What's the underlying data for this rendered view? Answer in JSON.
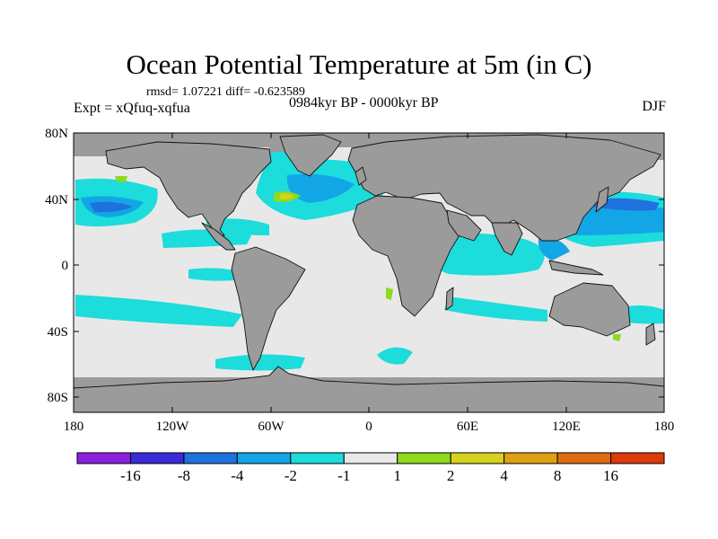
{
  "title": "Ocean Potential Temperature at 5m (in C)",
  "stats": "rmsd= 1.07221 diff= -0.623589",
  "experiment": "Expt = xQfuq-xqfua",
  "period": "0984kyr BP - 0000kyr BP",
  "season": "DJF",
  "lat_labels": [
    "80N",
    "40N",
    "0",
    "40S",
    "80S"
  ],
  "lon_labels": [
    "180",
    "120W",
    "60W",
    "0",
    "60E",
    "120E",
    "180"
  ],
  "colorbar": {
    "labels": [
      "-16",
      "-8",
      "-4",
      "-2",
      "-1",
      "1",
      "2",
      "4",
      "8",
      "16"
    ],
    "colors": [
      "#8a1fe0",
      "#3a2ad8",
      "#1f72de",
      "#13a6e6",
      "#1cdcdc",
      "#e8e8e8",
      "#8fd91e",
      "#d6d21f",
      "#e0a015",
      "#e06c10",
      "#dc3a0c"
    ]
  },
  "colors": {
    "land": "#9b9b9b",
    "ocean": "#e8e8e8",
    "cyan": "#1cdcdc",
    "sky": "#13a6e6",
    "blue": "#1f72de",
    "green": "#8fd91e",
    "yellow": "#d6d21f"
  }
}
